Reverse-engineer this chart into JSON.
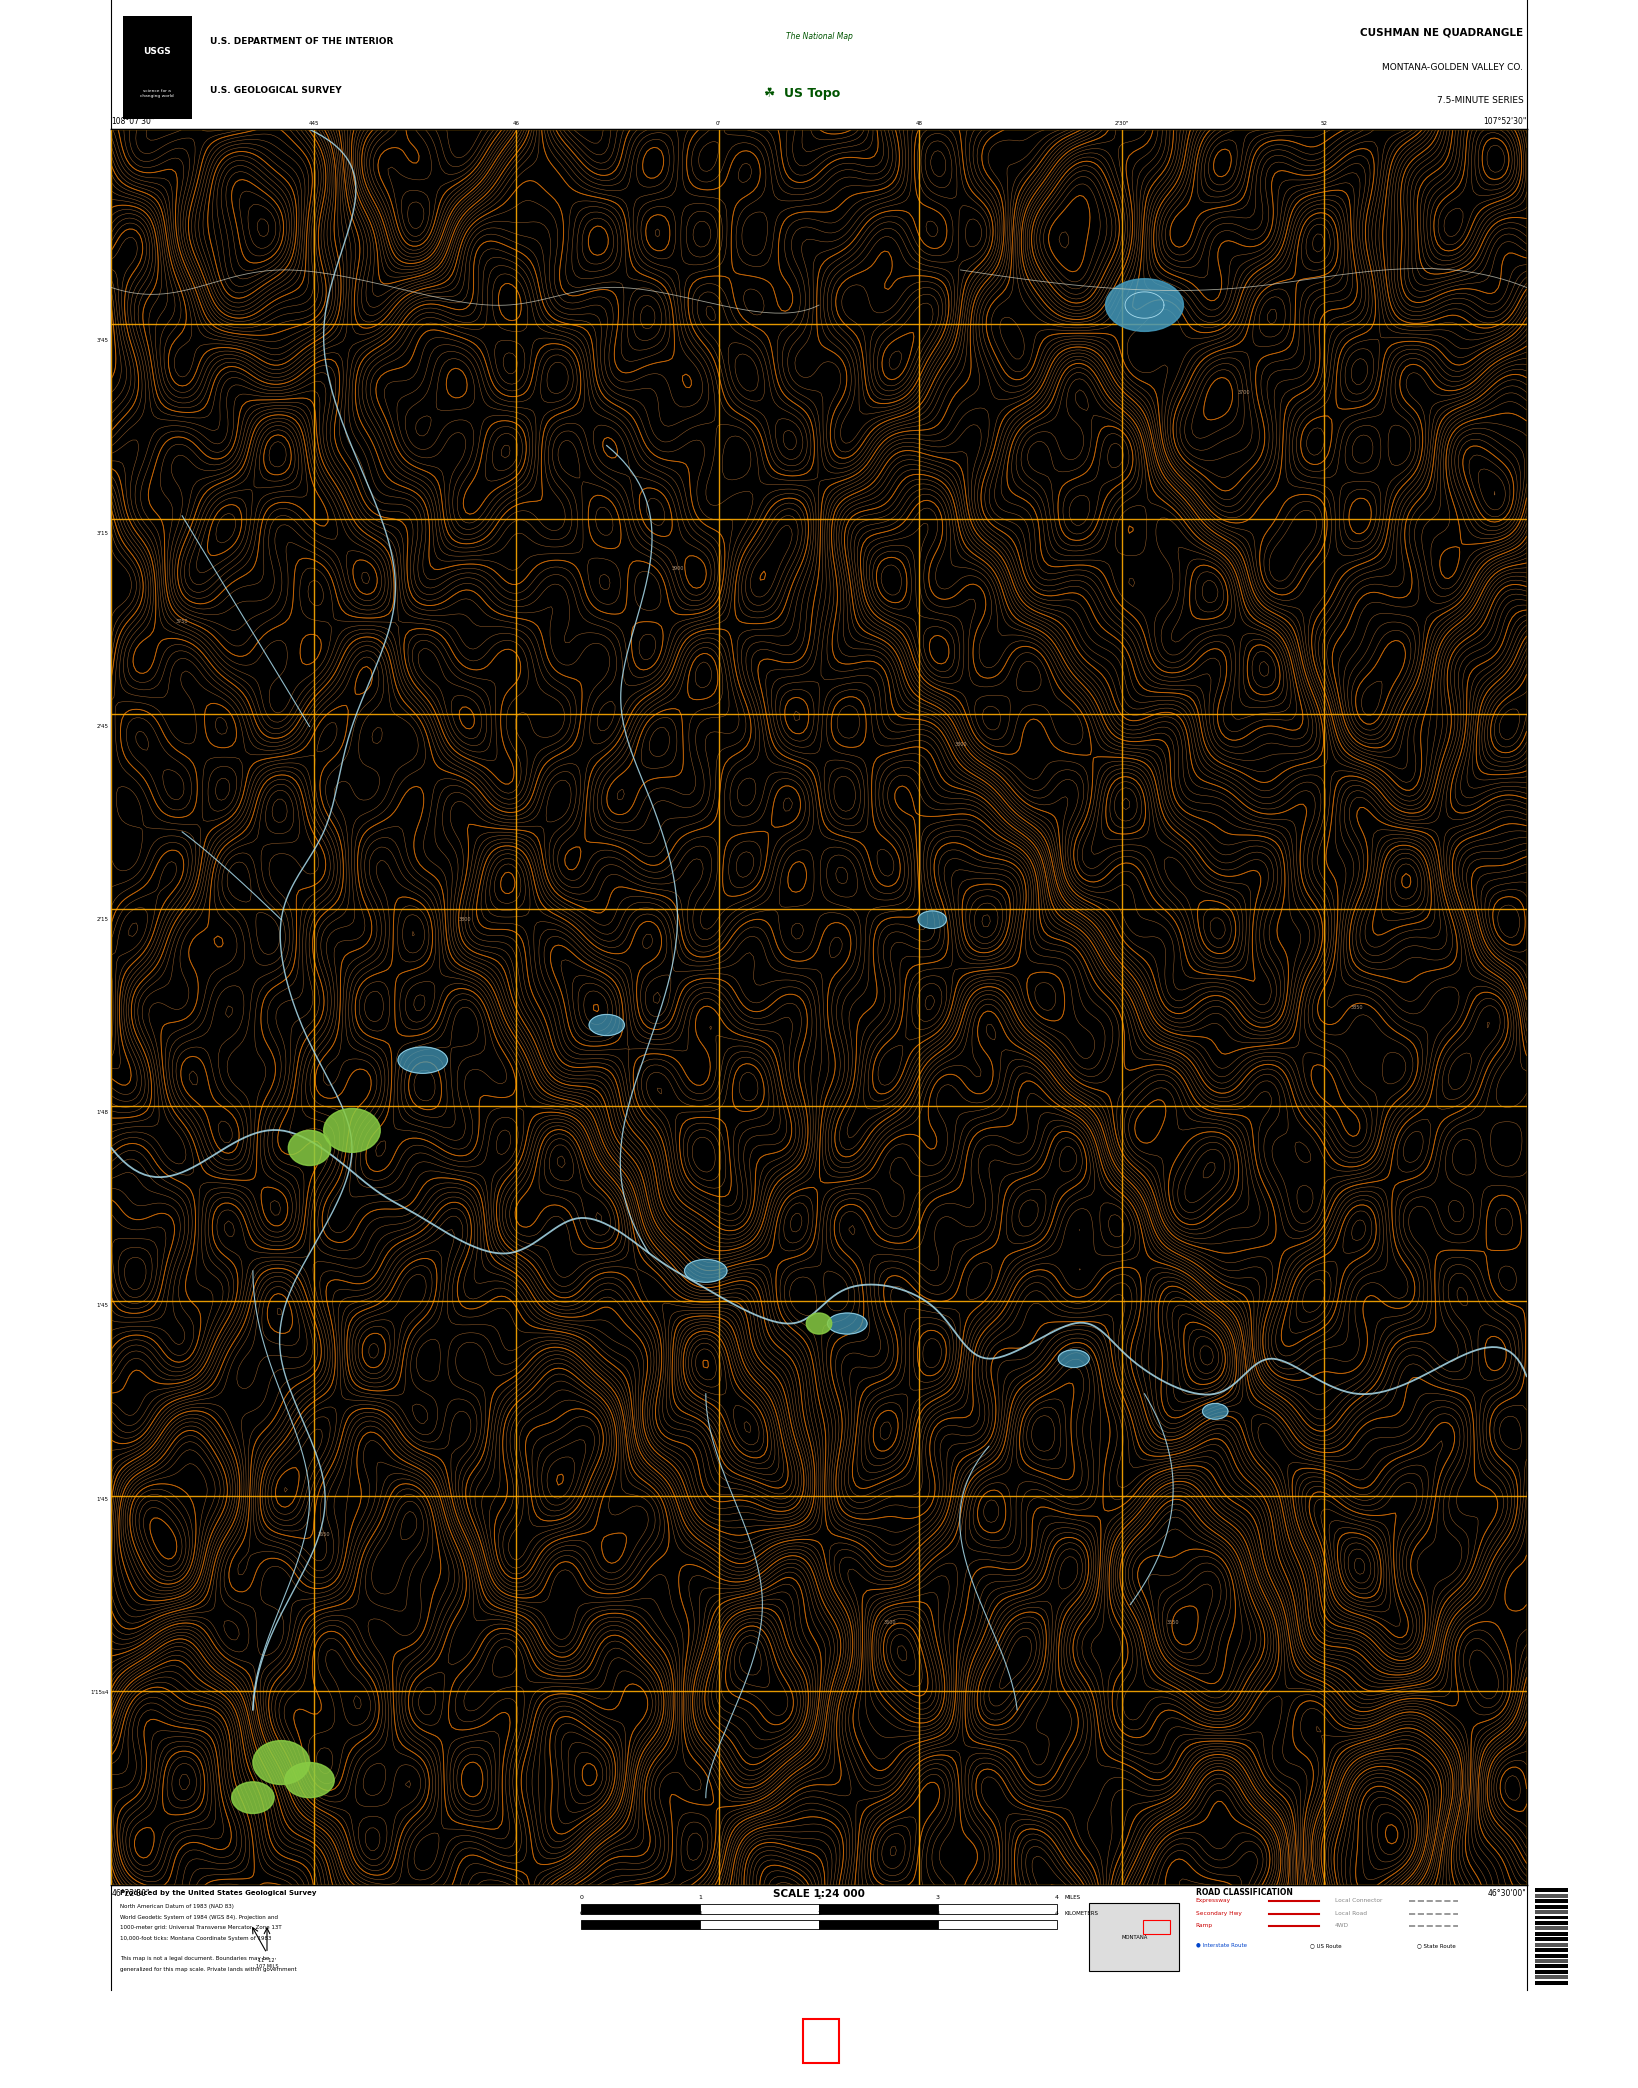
{
  "title": "CUSHMAN NE QUADRANGLE",
  "subtitle1": "MONTANA-GOLDEN VALLEY CO.",
  "subtitle2": "7.5-MINUTE SERIES",
  "dept_line1": "U.S. DEPARTMENT OF THE INTERIOR",
  "dept_line2": "U.S. GEOLOGICAL SURVEY",
  "map_bg_color": "#000000",
  "outer_bg_color": "#ffffff",
  "black_bar_color": "#000000",
  "contour_color": "#b87333",
  "contour_index_color": "#cc6600",
  "grid_color": "#ffaa00",
  "water_color": "#aaddee",
  "water_fill_color": "#4499bb",
  "veg_color": "#88cc44",
  "road_color": "#cc2222",
  "white_line_color": "#cccccc",
  "figure_width": 16.38,
  "figure_height": 20.88,
  "map_l": 0.068,
  "map_r": 0.932,
  "map_t": 0.938,
  "map_b": 0.097,
  "footer_b": 0.047,
  "scale_text": "SCALE 1:24 000"
}
